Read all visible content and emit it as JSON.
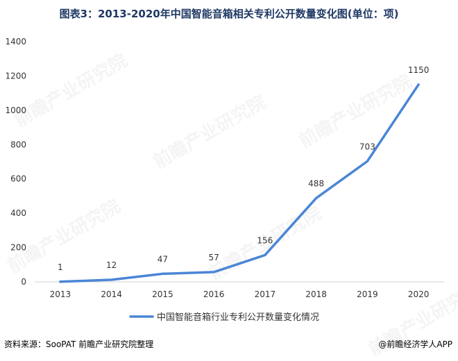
{
  "title": "图表3：2013-2020年中国智能音箱相关专利公开数量变化图(单位：项)",
  "source": "资料来源：SooPAT 前瞻产业研究院整理",
  "credit": "@前瞻经济学人APP",
  "watermark": "前瞻产业研究院",
  "chart_data": {
    "type": "line",
    "title": "图表3：2013-2020年中国智能音箱相关专利公开数量变化图(单位：项)",
    "xlabel": "",
    "ylabel": "",
    "categories": [
      "2013",
      "2014",
      "2015",
      "2016",
      "2017",
      "2018",
      "2019",
      "2020"
    ],
    "series": [
      {
        "name": "中国智能音箱行业专利公开数量变化情况",
        "values": [
          1,
          12,
          47,
          57,
          156,
          488,
          703,
          1150
        ],
        "color": "#4a86d6"
      }
    ],
    "ylim": [
      0,
      1400
    ],
    "yticks": [
      0,
      200,
      400,
      600,
      800,
      1000,
      1200,
      1400
    ],
    "grid": false,
    "legend": "bottom",
    "data_labels": true
  }
}
